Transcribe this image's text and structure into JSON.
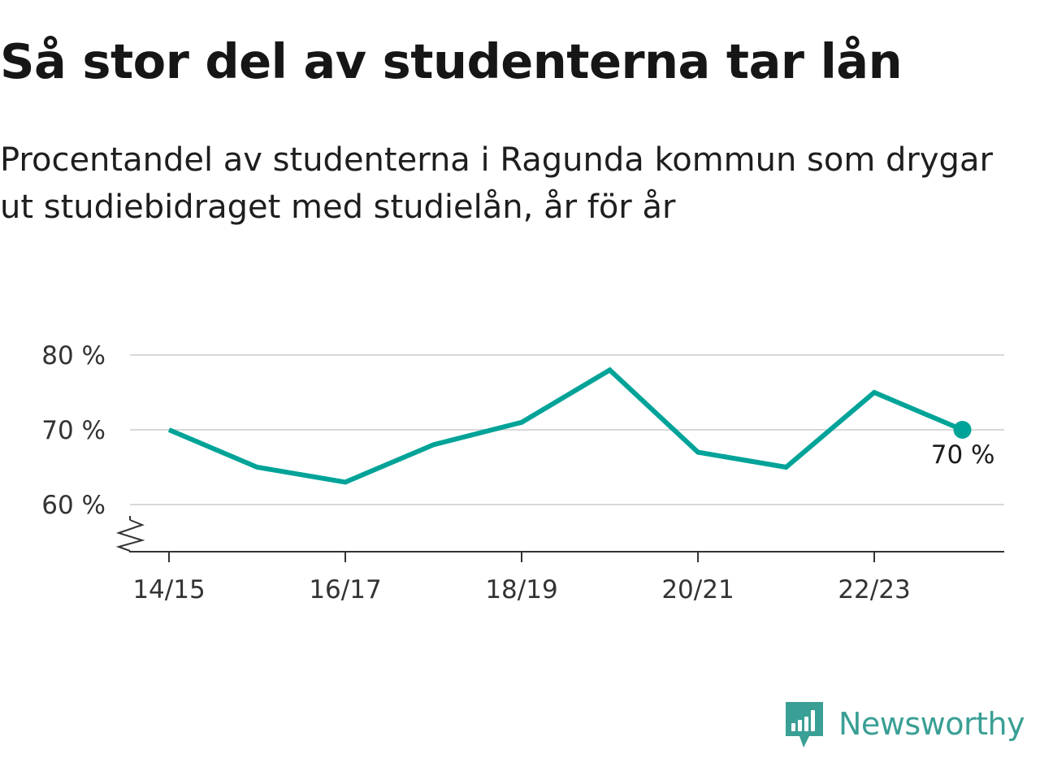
{
  "header": {
    "title": "Så stor del av studenterna tar lån",
    "subtitle": "Procentandel av studenterna i Ragunda kommun som drygar ut studiebidraget med studielån, år för år"
  },
  "chart_data": {
    "type": "line",
    "title": "Så stor del av studenterna tar lån",
    "subtitle": "Procentandel av studenterna i Ragunda kommun som drygar ut studiebidraget med studielån, år för år",
    "x": [
      "14/15",
      "15/16",
      "16/17",
      "17/18",
      "18/19",
      "19/20",
      "20/21",
      "21/22",
      "22/23",
      "23/24"
    ],
    "series": [
      {
        "values": [
          70,
          65,
          63,
          68,
          71,
          78,
          67,
          65,
          75,
          70
        ]
      }
    ],
    "x_tick_labels": [
      "14/15",
      "16/17",
      "18/19",
      "20/21",
      "22/23"
    ],
    "y_ticks": [
      60,
      70,
      80
    ],
    "y_tick_labels": [
      "60 %",
      "70 %",
      "80 %"
    ],
    "ylim": [
      53.7,
      80
    ],
    "y_axis_break": true,
    "grid": true,
    "end_label": "70 %",
    "colors": {
      "line": "#00a398",
      "grid": "#d9d9d9",
      "axis": "#333333"
    }
  },
  "branding": {
    "name": "Newsworthy",
    "logo_icon": "bar-chart-speech-bubble-icon",
    "color": "#3a9f94"
  }
}
